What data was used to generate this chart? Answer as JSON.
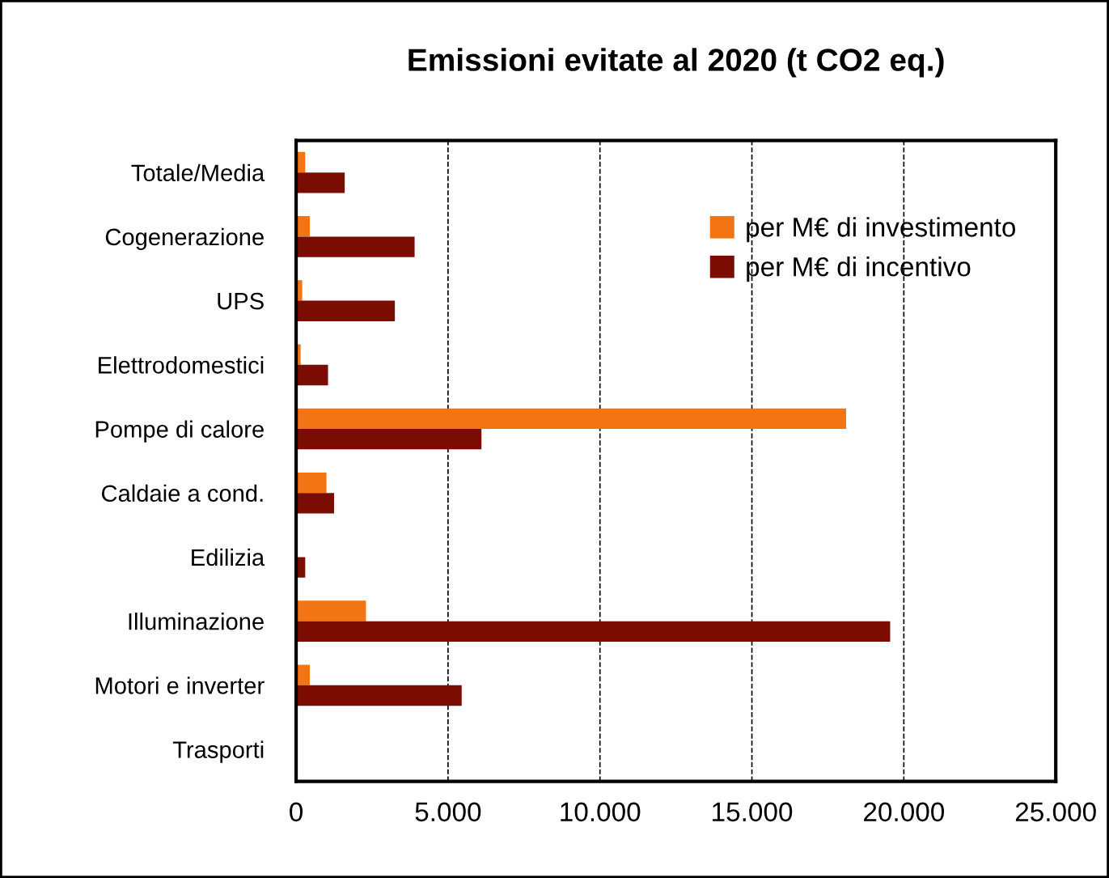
{
  "chart_data": {
    "type": "bar",
    "orientation": "horizontal",
    "title": "Emissioni evitate al 2020 (t CO2 eq.)",
    "categories": [
      "Totale/Media",
      "Cogenerazione",
      "UPS",
      "Elettrodomestici",
      "Pompe di calore",
      "Caldaie a cond.",
      "Edilizia",
      "Illuminazione",
      "Motori e inverter",
      "Trasporti"
    ],
    "series": [
      {
        "name": "per M€ di investimento",
        "color": "#f27413",
        "values": [
          300,
          450,
          200,
          150,
          18100,
          1000,
          0,
          2300,
          450,
          0
        ]
      },
      {
        "name": "per M€ di incentivo",
        "color": "#7a0c02",
        "values": [
          1600,
          3900,
          3250,
          1050,
          6100,
          1250,
          300,
          19550,
          5450,
          0
        ]
      }
    ],
    "xlim": [
      0,
      25000
    ],
    "xticks": [
      0,
      {
        "value": 5000,
        "label": "5.000"
      },
      {
        "value": 10000,
        "label": "10.000"
      },
      {
        "value": 15000,
        "label": "15.000"
      },
      {
        "value": 20000,
        "label": "20.000"
      },
      {
        "value": 25000,
        "label": "25.000"
      }
    ],
    "grid": "x",
    "legend": "top right"
  }
}
